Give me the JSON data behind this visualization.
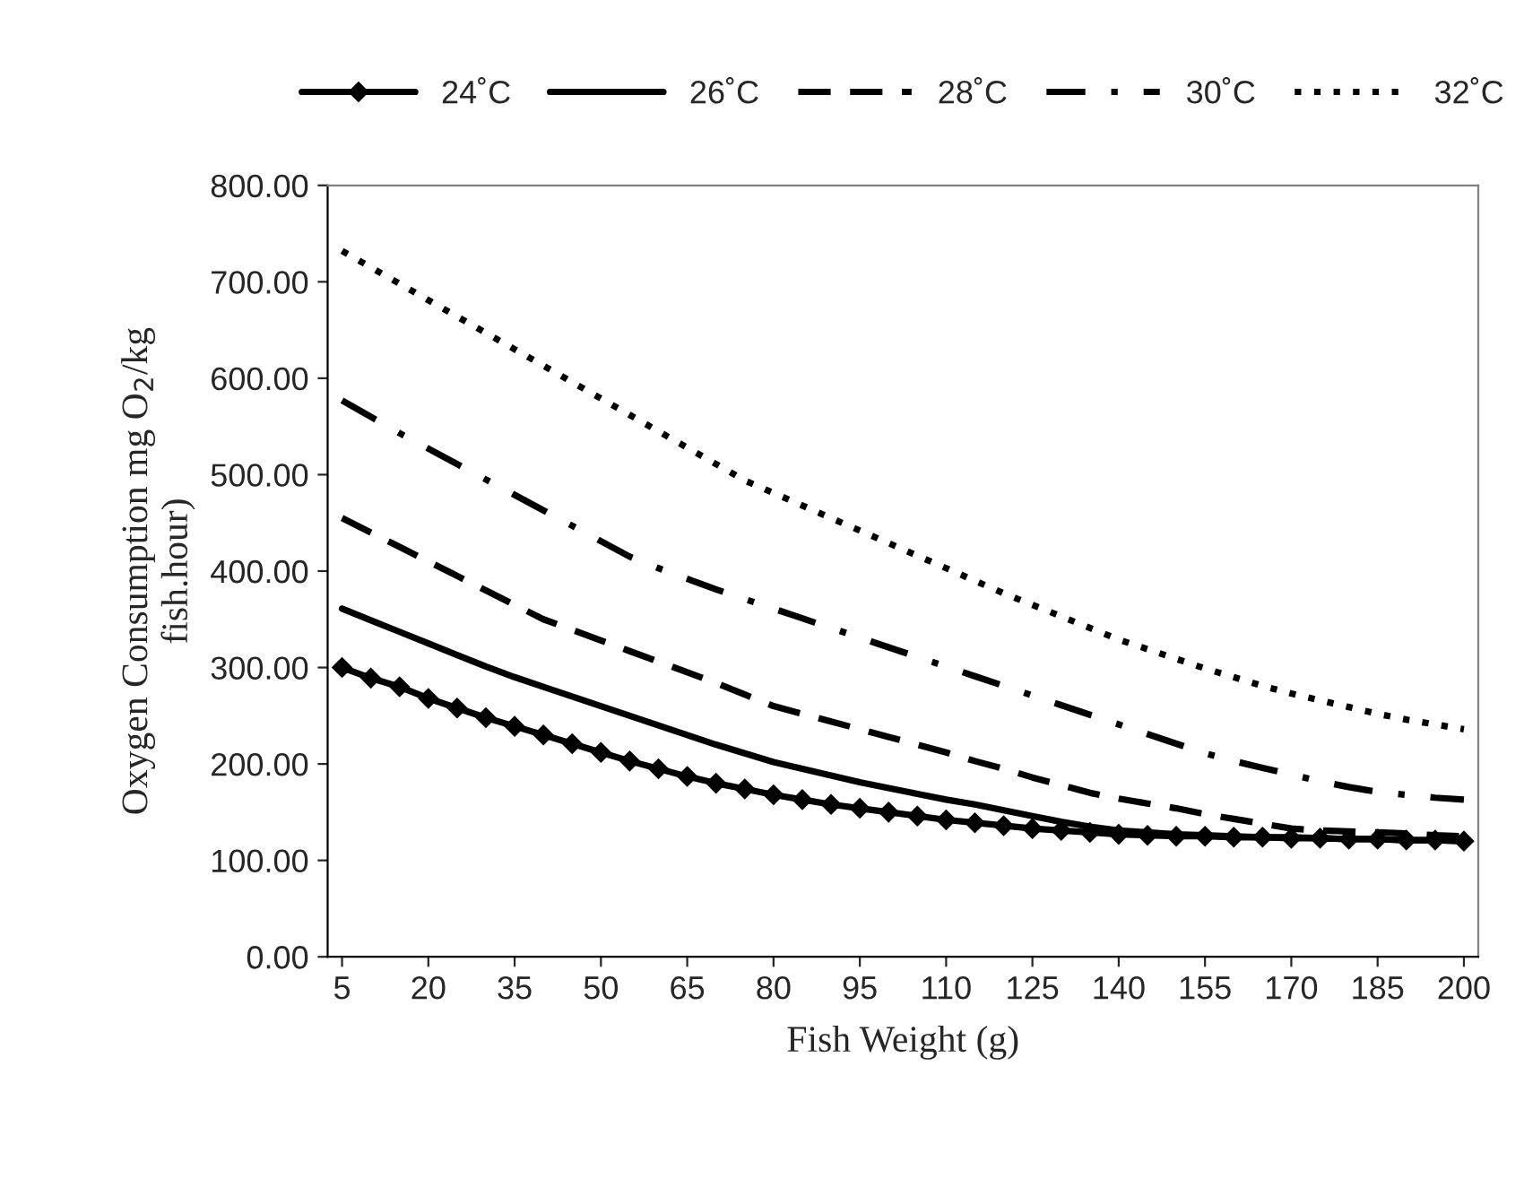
{
  "chart_data": {
    "type": "line",
    "xlabel": "Fish Weight (g)",
    "ylabel": "Oxygen Consumption mg O$_{2}$/kg\nfish.hour)",
    "x": [
      5,
      10,
      15,
      20,
      25,
      30,
      35,
      40,
      45,
      50,
      55,
      60,
      65,
      70,
      75,
      80,
      85,
      90,
      95,
      100,
      105,
      110,
      115,
      120,
      125,
      130,
      135,
      140,
      145,
      150,
      155,
      160,
      165,
      170,
      175,
      180,
      185,
      190,
      195,
      200
    ],
    "xlim": [
      2.5,
      202.5
    ],
    "xticks": [
      5,
      20,
      35,
      50,
      65,
      80,
      95,
      110,
      125,
      140,
      155,
      170,
      185,
      200
    ],
    "ylim": [
      0,
      800
    ],
    "yticks": [
      {
        "value": 0,
        "label": "0.00"
      },
      {
        "value": 100,
        "label": "100.00"
      },
      {
        "value": 200,
        "label": "200.00"
      },
      {
        "value": 300,
        "label": "300.00"
      },
      {
        "value": 400,
        "label": "400.00"
      },
      {
        "value": 500,
        "label": "500.00"
      },
      {
        "value": 600,
        "label": "600.00"
      },
      {
        "value": 700,
        "label": "700.00"
      },
      {
        "value": 800,
        "label": "800.00"
      }
    ],
    "grid": false,
    "legend": "top",
    "series": [
      {
        "name": "24˚C",
        "color": "#000000",
        "marker": "diamond",
        "line_style": "solid",
        "values": [
          300,
          289,
          280,
          268,
          258,
          248,
          239,
          230,
          221,
          212,
          203,
          195,
          187,
          180,
          174,
          168,
          163,
          158,
          154,
          150,
          146,
          142,
          139,
          136,
          133,
          131,
          129,
          127,
          126,
          125,
          125,
          124,
          124,
          123,
          123,
          122,
          122,
          121,
          121,
          120
        ]
      },
      {
        "name": "26˚C",
        "color": "#000000",
        "marker": "none",
        "line_style": "solid",
        "values": [
          361,
          349,
          337,
          325,
          313,
          301,
          290,
          280,
          270,
          260,
          250,
          240,
          230,
          220,
          211,
          202,
          195,
          188,
          181,
          175,
          169,
          163,
          158,
          152,
          146,
          140,
          135,
          131,
          129,
          127,
          126,
          125,
          124,
          124,
          123,
          122,
          122,
          121,
          121,
          120
        ]
      },
      {
        "name": "28˚C",
        "color": "#000000",
        "marker": "none",
        "line_style": "dashed",
        "values": [
          455,
          440,
          425,
          410,
          395,
          380,
          365,
          350,
          339,
          328,
          317,
          306,
          295,
          284,
          272,
          260,
          252,
          244,
          236,
          228,
          220,
          212,
          203,
          195,
          186,
          178,
          170,
          164,
          159,
          154,
          148,
          143,
          138,
          133,
          131,
          130,
          129,
          128,
          126,
          125
        ]
      },
      {
        "name": "30˚C",
        "color": "#000000",
        "marker": "none",
        "line_style": "dashdot",
        "values": [
          577,
          560,
          543,
          527,
          511,
          495,
          479,
          463,
          447,
          431,
          415,
          403,
          392,
          381,
          371,
          361,
          351,
          341,
          331,
          321,
          311,
          301,
          291,
          281,
          271,
          261,
          251,
          241,
          231,
          221,
          211,
          203,
          196,
          189,
          182,
          176,
          171,
          168,
          165,
          163
        ]
      },
      {
        "name": "32˚C",
        "color": "#000000",
        "marker": "none",
        "line_style": "dotted",
        "values": [
          732,
          715,
          698,
          681,
          664,
          647,
          630,
          613,
          596,
          579,
          562,
          545,
          528,
          511,
          494,
          481,
          468,
          455,
          442,
          429,
          416,
          403,
          390,
          377,
          365,
          353,
          341,
          329,
          319,
          309,
          299,
          290,
          281,
          273,
          266,
          259,
          252,
          246,
          241,
          236
        ]
      }
    ]
  }
}
